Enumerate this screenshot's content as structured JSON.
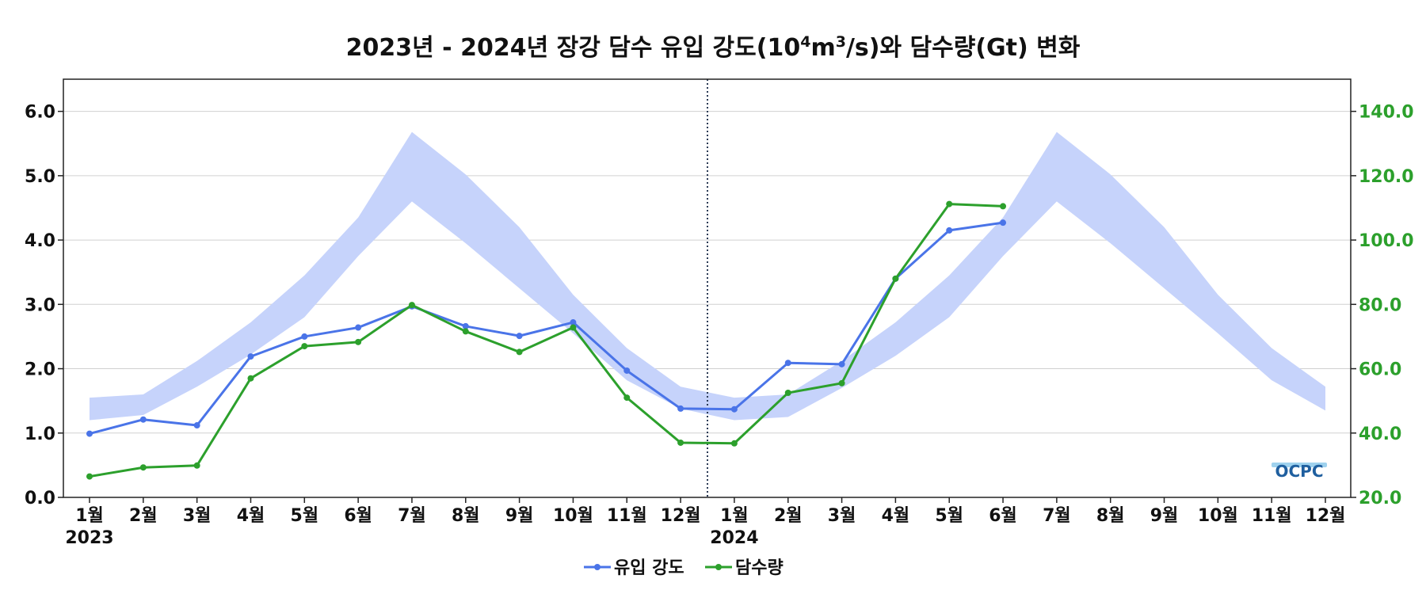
{
  "chart_data": {
    "type": "line",
    "title_parts": {
      "a": "2023년 - 2024년 장강 담수 유입 강도(10",
      "sup1": "4",
      "b": "m",
      "sup2": "3",
      "c": "/s)와 담수량(Gt) 변화"
    },
    "x_tick_labels": [
      "1월",
      "2월",
      "3월",
      "4월",
      "5월",
      "6월",
      "7월",
      "8월",
      "9월",
      "10월",
      "11월",
      "12월",
      "1월",
      "2월",
      "3월",
      "4월",
      "5월",
      "6월",
      "7월",
      "8월",
      "9월",
      "10월",
      "11월",
      "12월"
    ],
    "year_labels": [
      {
        "label": "2023",
        "index": 0
      },
      {
        "label": "2024",
        "index": 12
      }
    ],
    "divider_index": 11.5,
    "y_left": {
      "min": 0,
      "max": 6.5,
      "ticks": [
        0,
        1,
        2,
        3,
        4,
        5,
        6
      ],
      "tick_labels": [
        "0.0",
        "1.0",
        "2.0",
        "3.0",
        "4.0",
        "5.0",
        "6.0"
      ]
    },
    "y_right": {
      "min": 20,
      "max": 150,
      "ticks": [
        20,
        40,
        60,
        80,
        100,
        120,
        140
      ],
      "tick_labels": [
        "20.0",
        "40.0",
        "60.0",
        "80.0",
        "100.0",
        "120.0",
        "140.0"
      ],
      "color": "#2ca02c"
    },
    "band": {
      "color": "#c6d3fb",
      "lower": [
        1.2,
        1.28,
        1.72,
        2.22,
        2.8,
        3.75,
        4.6,
        3.95,
        3.25,
        2.55,
        1.82,
        1.38,
        1.2,
        1.25,
        1.7,
        2.2,
        2.8,
        3.75,
        4.6,
        3.95,
        3.25,
        2.55,
        1.82,
        1.35
      ],
      "upper": [
        1.55,
        1.6,
        2.12,
        2.72,
        3.45,
        4.35,
        5.68,
        5.02,
        4.2,
        3.15,
        2.32,
        1.72,
        1.55,
        1.6,
        2.12,
        2.72,
        3.45,
        4.35,
        5.68,
        5.02,
        4.2,
        3.15,
        2.32,
        1.72
      ]
    },
    "series": [
      {
        "name": "유입 강도",
        "axis": "left",
        "color": "#4a74e8",
        "values": [
          0.99,
          1.21,
          1.12,
          2.19,
          2.5,
          2.64,
          2.97,
          2.66,
          2.51,
          2.72,
          1.97,
          1.38,
          1.37,
          2.09,
          2.07,
          3.4,
          4.15,
          4.27
        ]
      },
      {
        "name": "담수량",
        "axis": "right",
        "color": "#2ca02c",
        "values": [
          26.5,
          29.3,
          29.9,
          57.0,
          67.0,
          68.3,
          79.8,
          71.6,
          65.2,
          72.8,
          51.0,
          37.0,
          36.8,
          52.5,
          55.5,
          88.0,
          111.2,
          110.5
        ]
      }
    ],
    "legend_position": "bottom-center",
    "grid": true,
    "logo": "OCPC"
  }
}
